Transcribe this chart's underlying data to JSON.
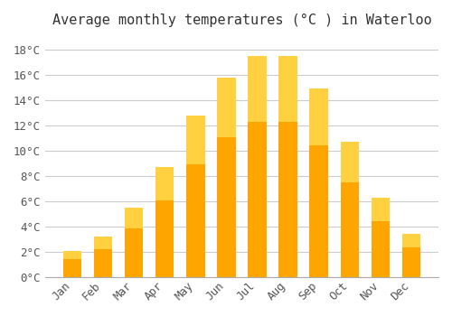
{
  "title": "Average monthly temperatures (°C ) in Waterloo",
  "months": [
    "Jan",
    "Feb",
    "Mar",
    "Apr",
    "May",
    "Jun",
    "Jul",
    "Aug",
    "Sep",
    "Oct",
    "Nov",
    "Dec"
  ],
  "values": [
    2.1,
    3.2,
    5.5,
    8.7,
    12.8,
    15.8,
    17.5,
    17.5,
    14.9,
    10.7,
    6.3,
    3.4
  ],
  "bar_color": "#FFA500",
  "bar_color_top": "#FFD040",
  "background_color": "#FFFFFF",
  "plot_bg_color": "#FFFFFF",
  "grid_color": "#CCCCCC",
  "ylim": [
    0,
    19
  ],
  "yticks": [
    0,
    2,
    4,
    6,
    8,
    10,
    12,
    14,
    16,
    18
  ],
  "title_fontsize": 11,
  "tick_fontsize": 9,
  "tick_font_family": "monospace"
}
